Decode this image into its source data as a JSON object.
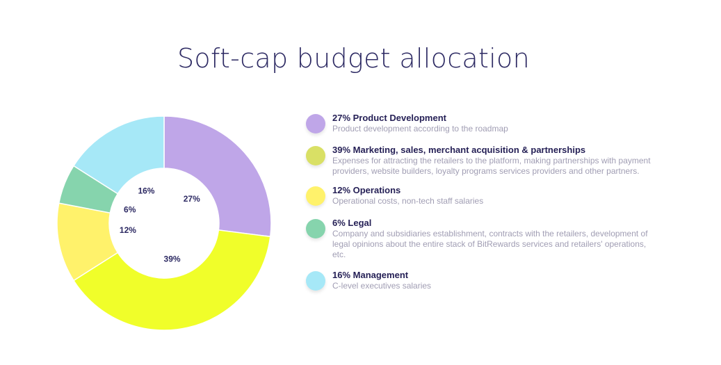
{
  "title": "Soft-cap budget allocation",
  "chart_data": {
    "type": "pie",
    "variant": "donut",
    "title": "Soft-cap budget allocation",
    "unit": "%",
    "slices": [
      {
        "label": "Product Development",
        "value": 27,
        "value_label": "27%",
        "color": "#bfa6e8"
      },
      {
        "label": "Marketing, sales, merchant acquisition & partnerships",
        "value": 39,
        "value_label": "39%",
        "color": "#f0fe2a"
      },
      {
        "label": "Operations",
        "value": 12,
        "value_label": "12%",
        "color": "#fff26b"
      },
      {
        "label": "Legal",
        "value": 6,
        "value_label": "6%",
        "color": "#86d4ad"
      },
      {
        "label": "Management",
        "value": 16,
        "value_label": "16%",
        "color": "#a6e8f7"
      }
    ],
    "legend_position": "right"
  },
  "legend": [
    {
      "title": "27% Product Development",
      "description": "Product development according to the roadmap",
      "dot_color": "#bfa6e8"
    },
    {
      "title": "39% Marketing, sales, merchant acquisition & partnerships",
      "description": "Expenses for attracting the retailers to the platform, making partnerships with payment providers, website builders, loyalty programs services providers and other partners.",
      "dot_color": "#d9e065"
    },
    {
      "title": "12% Operations",
      "description": "Operational costs, non-tech staff salaries",
      "dot_color": "#fff26b"
    },
    {
      "title": "6% Legal",
      "description": "Company and subsidiaries establishment, contracts with the retailers, development of legal opinions about the entire stack of BitRewards services and retailers' operations, etc.",
      "dot_color": "#86d4ad"
    },
    {
      "title": "16% Management",
      "description": "C-level executives salaries",
      "dot_color": "#a6e8f7"
    }
  ]
}
